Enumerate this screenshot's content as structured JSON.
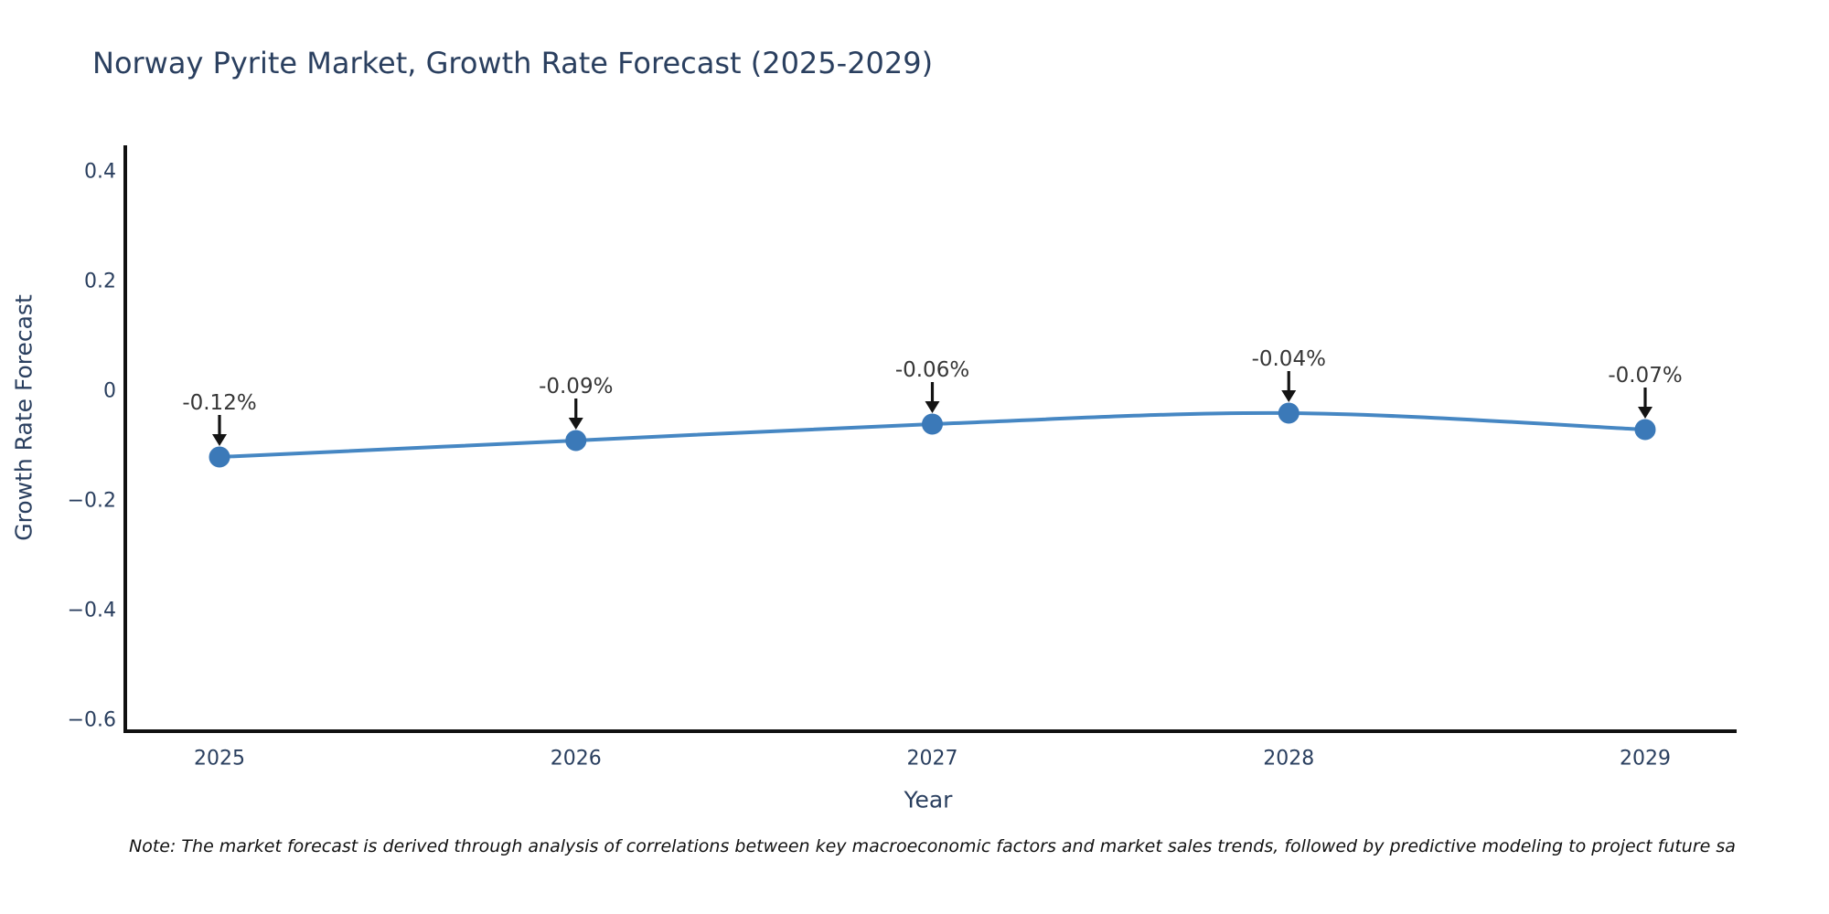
{
  "title": "Norway Pyrite Market, Growth Rate Forecast (2025-2029)",
  "note": "Note: The market forecast is derived through analysis of correlations between key macroeconomic factors and market sales trends, followed by predictive modeling to project future sa",
  "axes": {
    "x_title": "Year",
    "y_title": "Growth Rate Forecast",
    "x_tick_labels": [
      "2025",
      "2026",
      "2027",
      "2028",
      "2029"
    ],
    "y_tick_labels": [
      "0.4",
      "0.2",
      "0",
      "−0.2",
      "−0.4",
      "−0.6"
    ]
  },
  "colors": {
    "line": "#4687c3",
    "marker": "#3b79b8",
    "axis_line": "#111111",
    "tick_text": "#2a3f5f",
    "annotation_text": "#363636",
    "arrow": "#141414",
    "background": "#ffffff"
  },
  "chart_data": {
    "type": "line",
    "title": "Norway Pyrite Market, Growth Rate Forecast (2025-2029)",
    "xlabel": "Year",
    "ylabel": "Growth Rate Forecast",
    "x": [
      2025,
      2026,
      2027,
      2028,
      2029
    ],
    "series": [
      {
        "name": "Growth Rate Forecast",
        "values": [
          -0.12,
          -0.09,
          -0.06,
          -0.04,
          -0.07
        ]
      }
    ],
    "point_labels": [
      "-0.12%",
      "-0.09%",
      "-0.06%",
      "-0.04%",
      "-0.07%"
    ],
    "yticks": [
      0.4,
      0.2,
      0,
      -0.2,
      -0.4,
      -0.6
    ],
    "ylim": [
      -0.62,
      0.45
    ],
    "xlim": [
      2024.74,
      2029.27
    ],
    "grid": false,
    "legend": false,
    "line_shape": "spline",
    "annotation_style": "arrow-down-to-point"
  }
}
